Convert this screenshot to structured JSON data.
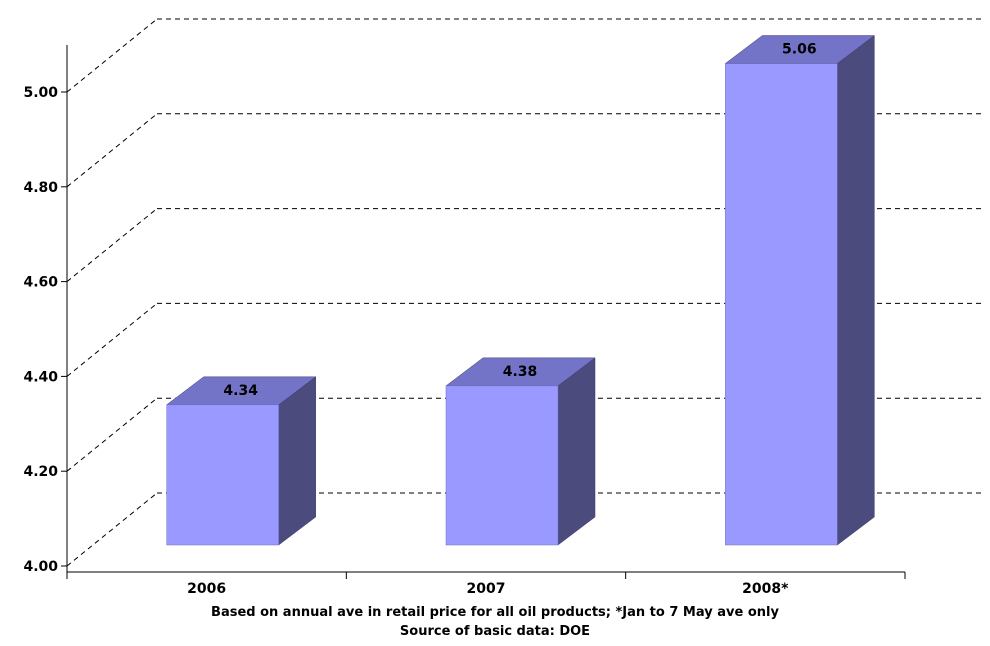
{
  "chart_data": {
    "type": "bar",
    "categories": [
      "2006",
      "2007",
      "2008*"
    ],
    "values": [
      4.34,
      4.38,
      5.06
    ],
    "value_labels": [
      "4.34",
      "4.38",
      "5.06"
    ],
    "yticks": [
      "4.00",
      "4.20",
      "4.40",
      "4.60",
      "4.80",
      "5.00"
    ],
    "ylim": [
      4.0,
      5.0
    ],
    "grid": true,
    "style": "3d",
    "colors": {
      "front": "#9999ff",
      "top": "#7373c8",
      "side": "#4b4b7d"
    },
    "notes": [
      "Based on annual ave in retail price for all oil products; *Jan to 7 May ave only",
      "Source of basic data: DOE"
    ]
  }
}
